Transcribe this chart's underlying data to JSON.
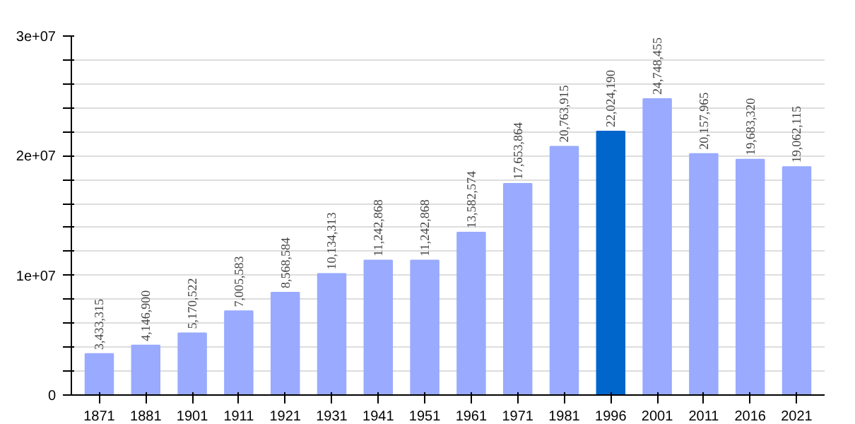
{
  "chart_data": {
    "type": "bar",
    "categories": [
      "1871",
      "1881",
      "1901",
      "1911",
      "1921",
      "1931",
      "1941",
      "1951",
      "1961",
      "1971",
      "1981",
      "1996",
      "2001",
      "2011",
      "2016",
      "2021"
    ],
    "values": [
      3433315,
      4146900,
      5170522,
      7005583,
      8568584,
      10134313,
      11242868,
      11242868,
      13582574,
      17653864,
      20763915,
      22024190,
      24748455,
      20157965,
      19683320,
      19062115
    ],
    "colors": [
      "#99aaff",
      "#99aaff",
      "#99aaff",
      "#99aaff",
      "#99aaff",
      "#99aaff",
      "#99aaff",
      "#99aaff",
      "#99aaff",
      "#99aaff",
      "#99aaff",
      "#0066cc",
      "#99aaff",
      "#99aaff",
      "#99aaff",
      "#99aaff"
    ],
    "ylim": [
      0,
      30000000
    ],
    "yticks": [
      0,
      {
        "value": 2000000,
        "label": null
      },
      {
        "value": 4000000,
        "label": null
      },
      {
        "value": 6000000,
        "label": null
      },
      {
        "value": 8000000,
        "label": null
      },
      {
        "value": 10000000,
        "label": "1e+07"
      },
      {
        "value": 12000000,
        "label": null
      },
      {
        "value": 14000000,
        "label": null
      },
      {
        "value": 16000000,
        "label": null
      },
      {
        "value": 18000000,
        "label": null
      },
      {
        "value": 20000000,
        "label": "2e+07"
      },
      {
        "value": 22000000,
        "label": null
      },
      {
        "value": 24000000,
        "label": null
      },
      {
        "value": 26000000,
        "label": null
      },
      {
        "value": 28000000,
        "label": null
      },
      {
        "value": 30000000,
        "label": "3e+07"
      }
    ],
    "value_labels": [
      "3,433,315",
      "4,146,900",
      "5,170,522",
      "7,005,583",
      "8,568,584",
      "10,134,313",
      "11,242,868",
      "11,242,868",
      "13,582,574",
      "17,653,864",
      "20,763,915",
      "22,024,190",
      "24,748,455",
      "20,157,965",
      "19,683,320",
      "19,062,115"
    ],
    "grid": "y"
  }
}
